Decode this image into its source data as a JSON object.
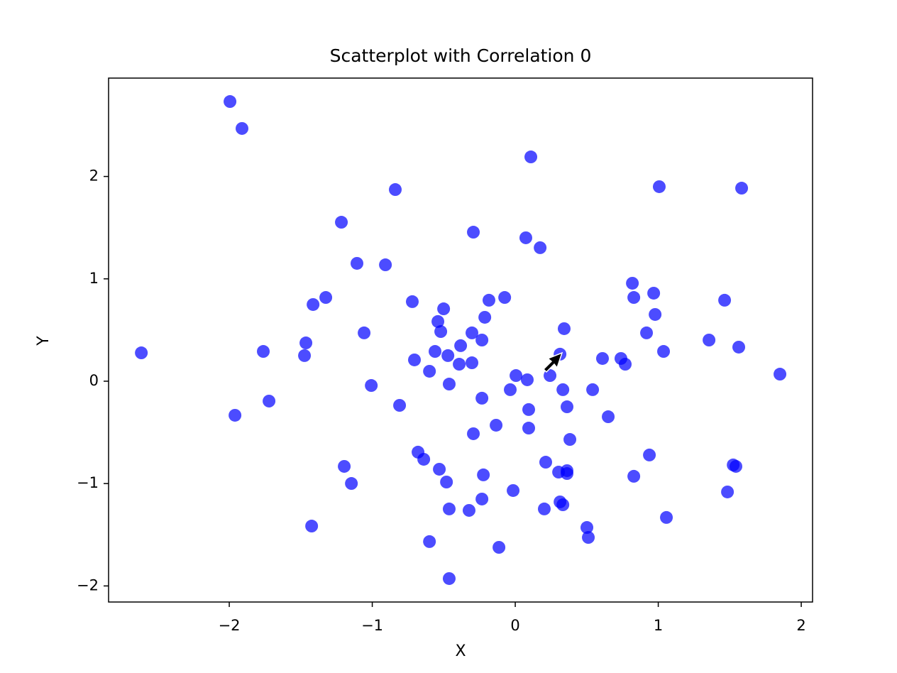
{
  "chart_data": {
    "type": "scatter",
    "title": "Scatterplot with Correlation 0",
    "x_label": "X",
    "y_label": "Y",
    "color": "#0000ff",
    "alpha": 0.7,
    "xlim": [
      -2.844,
      2.079
    ],
    "ylim": [
      -2.157,
      2.961
    ],
    "xticks": [
      {
        "value": -2,
        "label": "−2"
      },
      {
        "value": -1,
        "label": "−1"
      },
      0,
      1,
      2
    ],
    "yticks": [
      {
        "value": -2,
        "label": "−2"
      },
      {
        "value": -1,
        "label": "−1"
      },
      0,
      1,
      2
    ],
    "x": [
      -1.995,
      -1.911,
      0.109,
      1.007,
      1.583,
      -0.839,
      -1.216,
      -0.293,
      0.074,
      0.174,
      -1.107,
      -0.908,
      0.819,
      0.968,
      -1.325,
      -0.074,
      0.829,
      -0.184,
      1.464,
      -1.414,
      -0.72,
      -0.501,
      0.978,
      -0.213,
      -0.541,
      0.342,
      -1.057,
      -0.521,
      -0.303,
      0.918,
      -0.233,
      1.355,
      -1.464,
      -0.382,
      1.563,
      -1.762,
      -0.561,
      1.037,
      -2.615,
      -0.471,
      -1.474,
      0.313,
      -0.705,
      0.61,
      0.739,
      -0.392,
      -0.303,
      0.769,
      -0.6,
      1.851,
      0.243,
      0.005,
      0.084,
      -0.462,
      -1.007,
      -0.035,
      0.333,
      0.541,
      -0.233,
      -1.722,
      -0.809,
      0.362,
      0.094,
      -1.96,
      0.65,
      -0.134,
      0.094,
      -0.293,
      0.382,
      -0.68,
      0.938,
      -0.64,
      0.213,
      1.524,
      1.543,
      -1.196,
      -0.531,
      0.303,
      0.362,
      0.362,
      -0.223,
      0.829,
      -0.481,
      -1.146,
      -0.015,
      1.484,
      -0.233,
      0.313,
      0.333,
      -0.462,
      0.203,
      -0.323,
      1.057,
      -1.424,
      0.501,
      0.511,
      -0.6,
      -0.114,
      -0.462
    ],
    "values": [
      2.732,
      2.469,
      2.191,
      1.9,
      1.886,
      1.872,
      1.553,
      1.456,
      1.401,
      1.304,
      1.151,
      1.137,
      0.957,
      0.86,
      0.818,
      0.818,
      0.818,
      0.791,
      0.791,
      0.749,
      0.777,
      0.707,
      0.652,
      0.624,
      0.583,
      0.513,
      0.472,
      0.485,
      0.472,
      0.472,
      0.402,
      0.402,
      0.374,
      0.347,
      0.333,
      0.291,
      0.291,
      0.291,
      0.277,
      0.25,
      0.25,
      0.264,
      0.208,
      0.222,
      0.222,
      0.166,
      0.18,
      0.166,
      0.097,
      0.069,
      0.055,
      0.055,
      0.014,
      -0.028,
      -0.042,
      -0.083,
      -0.083,
      -0.083,
      -0.166,
      -0.194,
      -0.236,
      -0.25,
      -0.277,
      -0.333,
      -0.347,
      -0.43,
      -0.458,
      -0.513,
      -0.569,
      -0.693,
      -0.721,
      -0.763,
      -0.791,
      -0.818,
      -0.832,
      -0.832,
      -0.86,
      -0.888,
      -0.874,
      -0.902,
      -0.915,
      -0.929,
      -0.985,
      -0.999,
      -1.068,
      -1.082,
      -1.151,
      -1.179,
      -1.207,
      -1.248,
      -1.248,
      -1.262,
      -1.331,
      -1.415,
      -1.429,
      -1.526,
      -1.567,
      -1.623,
      -1.928
    ]
  }
}
